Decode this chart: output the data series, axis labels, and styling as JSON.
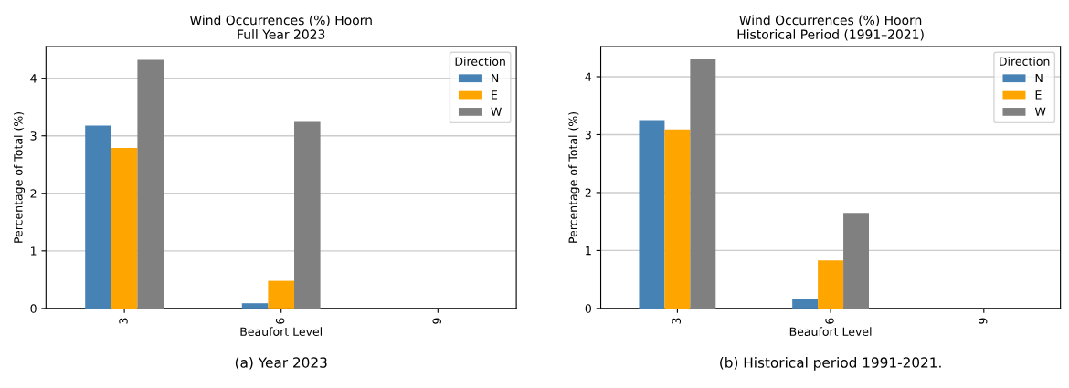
{
  "chart_data": [
    {
      "type": "bar",
      "title": "Wind Occurrences (%) Hoorn\nFull Year 2023",
      "xlabel": "Beaufort Level",
      "ylabel": "Percentage of Total (%)",
      "legend_title": "Direction",
      "legend": "top right",
      "grid": "y",
      "categories": [
        "3",
        "6",
        "9"
      ],
      "ylim": [
        0,
        4.55
      ],
      "yticks": [
        0,
        1,
        2,
        3,
        4
      ],
      "series": [
        {
          "name": "N",
          "color": "#4682b4",
          "values": [
            3.18,
            0.09,
            0
          ]
        },
        {
          "name": "E",
          "color": "#ffa500",
          "values": [
            2.79,
            0.48,
            0
          ]
        },
        {
          "name": "W",
          "color": "#808080",
          "values": [
            4.32,
            3.24,
            0
          ]
        }
      ],
      "annotations": [
        "(a) Year 2023"
      ]
    },
    {
      "type": "bar",
      "title": "Wind Occurrences (%) Hoorn\nHistorical Period (1991–2021)",
      "xlabel": "Beaufort Level",
      "ylabel": "Percentage of Total (%)",
      "legend_title": "Direction",
      "legend": "top right",
      "grid": "y",
      "categories": [
        "3",
        "6",
        "9"
      ],
      "ylim": [
        0,
        4.52
      ],
      "yticks": [
        0,
        1,
        2,
        3,
        4
      ],
      "series": [
        {
          "name": "N",
          "color": "#4682b4",
          "values": [
            3.25,
            0.16,
            0
          ]
        },
        {
          "name": "E",
          "color": "#ffa500",
          "values": [
            3.09,
            0.83,
            0
          ]
        },
        {
          "name": "W",
          "color": "#808080",
          "values": [
            4.3,
            1.65,
            0
          ]
        }
      ],
      "annotations": [
        "(b) Historical period 1991-2021."
      ]
    }
  ]
}
